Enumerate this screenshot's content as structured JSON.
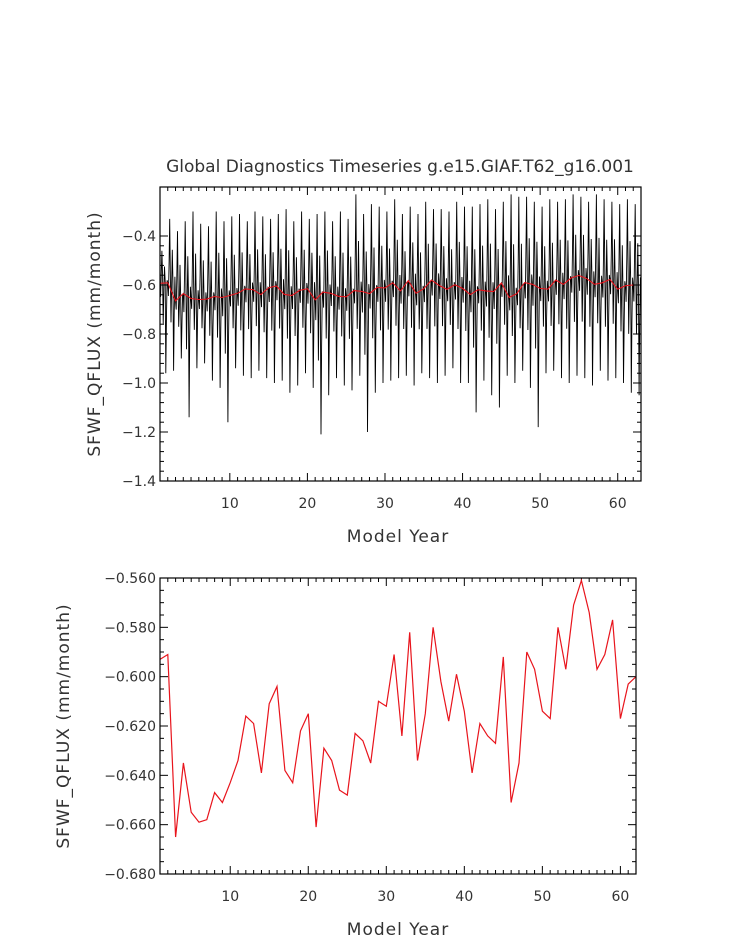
{
  "chart_data": [
    {
      "type": "line",
      "title": "Global Diagnostics Timeseries g.e15.GIAF.T62_g16.001",
      "xlabel": "Model Year",
      "ylabel": "SFWF_QFLUX (mm/month)",
      "xlim": [
        1,
        63
      ],
      "ylim": [
        -1.4,
        -0.2
      ],
      "xticks": [
        "10",
        "20",
        "30",
        "40",
        "50",
        "60"
      ],
      "yticks": [
        "−1.4",
        "−1.2",
        "−1.0",
        "−0.8",
        "−0.6",
        "−0.4"
      ],
      "ytick_values": [
        -1.4,
        -1.2,
        -1.0,
        -0.8,
        -0.6,
        -0.4
      ],
      "grid": false,
      "legend": "none",
      "series": [
        {
          "color": "#000000",
          "resolution": "monthly",
          "sampling_note": "approximate monthly seasonal cycle: annual mean from the red series, yearly max/min peaks",
          "annual_max": [
            -0.46,
            -0.33,
            -0.38,
            -0.34,
            -0.3,
            -0.35,
            -0.36,
            -0.3,
            -0.34,
            -0.32,
            -0.31,
            -0.34,
            -0.3,
            -0.32,
            -0.33,
            -0.31,
            -0.29,
            -0.34,
            -0.3,
            -0.33,
            -0.31,
            -0.3,
            -0.34,
            -0.3,
            -0.33,
            -0.23,
            -0.31,
            -0.27,
            -0.28,
            -0.3,
            -0.25,
            -0.31,
            -0.28,
            -0.31,
            -0.26,
            -0.29,
            -0.29,
            -0.3,
            -0.26,
            -0.28,
            -0.28,
            -0.27,
            -0.25,
            -0.29,
            -0.26,
            -0.23,
            -0.24,
            -0.24,
            -0.26,
            -0.28,
            -0.25,
            -0.26,
            -0.25,
            -0.23,
            -0.24,
            -0.26,
            -0.23,
            -0.25,
            -0.26,
            -0.27,
            -0.25,
            -0.27
          ],
          "annual_min": [
            -0.96,
            -0.95,
            -0.9,
            -1.14,
            -0.94,
            -0.92,
            -0.99,
            -1.02,
            -1.16,
            -0.94,
            -0.97,
            -0.98,
            -0.95,
            -0.98,
            -1.0,
            -0.99,
            -1.04,
            -1.01,
            -0.96,
            -1.02,
            -1.21,
            -1.05,
            -0.98,
            -1.01,
            -1.03,
            -0.97,
            -1.2,
            -1.04,
            -1.0,
            -0.99,
            -0.98,
            -0.97,
            -1.01,
            -0.96,
            -0.98,
            -1.0,
            -0.97,
            -0.94,
            -1.0,
            -1.0,
            -1.12,
            -0.99,
            -1.05,
            -1.1,
            -0.97,
            -1.0,
            -0.95,
            -1.02,
            -1.18,
            -0.96,
            -0.95,
            -0.98,
            -1.0,
            -0.97,
            -0.98,
            -1.01,
            -0.95,
            -0.99,
            -0.98,
            -1.0,
            -1.04,
            -1.05
          ]
        },
        {
          "color": "#e8141c",
          "resolution": "annual mean",
          "values": "same as chart 2 values"
        }
      ]
    },
    {
      "type": "line",
      "title": "",
      "xlabel": "Model Year",
      "ylabel": "SFWF_QFLUX (mm/month)",
      "xlim": [
        1,
        62
      ],
      "ylim": [
        -0.68,
        -0.56
      ],
      "xticks": [
        "10",
        "20",
        "30",
        "40",
        "50",
        "60"
      ],
      "yticks": [
        "−0.680",
        "−0.660",
        "−0.640",
        "−0.620",
        "−0.600",
        "−0.580",
        "−0.560"
      ],
      "ytick_values": [
        -0.68,
        -0.66,
        -0.64,
        -0.62,
        -0.6,
        -0.58,
        -0.56
      ],
      "grid": false,
      "legend": "none",
      "series": [
        {
          "color": "#e8141c",
          "x": [
            1,
            2,
            3,
            4,
            5,
            6,
            7,
            8,
            9,
            10,
            11,
            12,
            13,
            14,
            15,
            16,
            17,
            18,
            19,
            20,
            21,
            22,
            23,
            24,
            25,
            26,
            27,
            28,
            29,
            30,
            31,
            32,
            33,
            34,
            35,
            36,
            37,
            38,
            39,
            40,
            41,
            42,
            43,
            44,
            45,
            46,
            47,
            48,
            49,
            50,
            51,
            52,
            53,
            54,
            55,
            56,
            57,
            58,
            59,
            60,
            61,
            62
          ],
          "values": [
            -0.593,
            -0.591,
            -0.665,
            -0.635,
            -0.655,
            -0.659,
            -0.658,
            -0.647,
            -0.651,
            -0.643,
            -0.634,
            -0.616,
            -0.619,
            -0.639,
            -0.611,
            -0.604,
            -0.638,
            -0.643,
            -0.622,
            -0.615,
            -0.661,
            -0.629,
            -0.634,
            -0.646,
            -0.648,
            -0.623,
            -0.626,
            -0.635,
            -0.61,
            -0.612,
            -0.591,
            -0.624,
            -0.582,
            -0.634,
            -0.615,
            -0.58,
            -0.602,
            -0.618,
            -0.599,
            -0.614,
            -0.639,
            -0.619,
            -0.624,
            -0.627,
            -0.592,
            -0.651,
            -0.635,
            -0.59,
            -0.597,
            -0.614,
            -0.617,
            -0.58,
            -0.597,
            -0.571,
            -0.561,
            -0.574,
            -0.597,
            -0.591,
            -0.577,
            -0.617,
            -0.603,
            -0.6
          ]
        }
      ]
    }
  ]
}
